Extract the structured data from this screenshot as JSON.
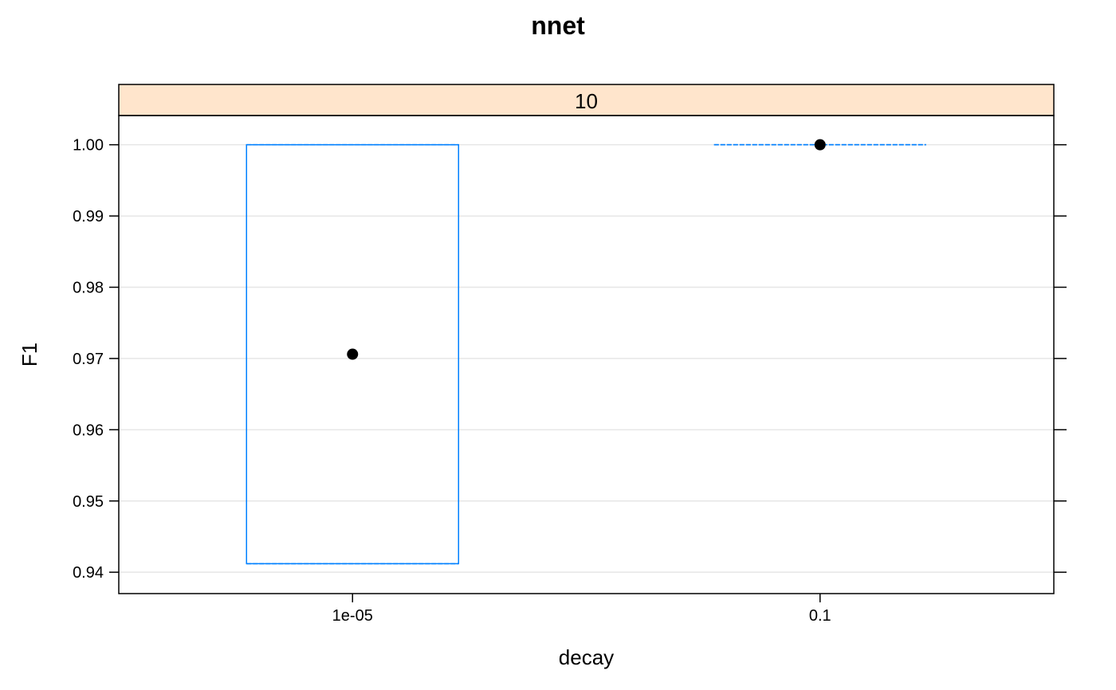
{
  "chart_data": {
    "type": "box",
    "title": "nnet",
    "xlabel": "decay",
    "ylabel": "F1",
    "panel_strip": "10",
    "categories": [
      "1e-05",
      "0.1"
    ],
    "boxes": [
      {
        "category": "1e-05",
        "min": 0.9412,
        "q1": 0.9412,
        "median": 0.9706,
        "q3": 1.0,
        "max": 1.0
      },
      {
        "category": "0.1",
        "min": 1.0,
        "q1": 1.0,
        "median": 1.0,
        "q3": 1.0,
        "max": 1.0
      }
    ],
    "y_ticks": [
      "0.94",
      "0.95",
      "0.96",
      "0.97",
      "0.98",
      "0.99",
      "1.00"
    ],
    "ylim": [
      0.937,
      1.0041
    ],
    "grid": true,
    "colors": {
      "box": "#0080ff",
      "median_dot": "#000000",
      "strip": "#ffe5cc",
      "grid": "#e6e6e6",
      "frame": "#000000"
    }
  }
}
